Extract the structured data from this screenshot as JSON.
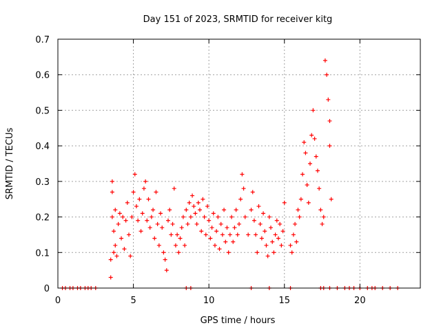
{
  "chart_data": {
    "type": "scatter",
    "title": "Day 151 of 2023, SRMTID for receiver kitg",
    "xlabel": "GPS time / hours",
    "ylabel": "SRMTID / TECUs",
    "xlim": [
      0,
      24
    ],
    "ylim": [
      0,
      0.7
    ],
    "xticks": [
      0,
      5,
      10,
      15,
      20
    ],
    "xtick_labels": [
      "0",
      "5",
      "10",
      "15",
      "20"
    ],
    "yticks": [
      0,
      0.1,
      0.2,
      0.3,
      0.4,
      0.5,
      0.6,
      0.7
    ],
    "ytick_labels": [
      "0",
      "0.1",
      "0.2",
      "0.3",
      "0.4",
      "0.5",
      "0.6",
      "0.7"
    ],
    "grid": true,
    "marker": "+",
    "color": "#ff0000",
    "series": [
      {
        "name": "SRMTID",
        "x": [
          0.3,
          0.5,
          0.8,
          1.0,
          1.3,
          1.5,
          1.8,
          2.0,
          2.2,
          2.5,
          3.5,
          3.5,
          3.6,
          3.6,
          3.6,
          3.7,
          3.7,
          3.8,
          3.8,
          3.9,
          4.0,
          4.1,
          4.2,
          4.3,
          4.4,
          4.5,
          4.6,
          4.7,
          4.8,
          4.9,
          5.0,
          5.1,
          5.2,
          5.3,
          5.4,
          5.5,
          5.6,
          5.7,
          5.8,
          5.9,
          6.0,
          6.1,
          6.2,
          6.3,
          6.4,
          6.5,
          6.6,
          6.7,
          6.8,
          6.9,
          7.0,
          7.1,
          7.2,
          7.3,
          7.4,
          7.5,
          7.6,
          7.7,
          7.8,
          7.9,
          8.0,
          8.1,
          8.2,
          8.3,
          8.4,
          8.5,
          8.6,
          8.7,
          8.8,
          8.9,
          9.0,
          9.1,
          9.2,
          9.3,
          9.4,
          9.5,
          9.6,
          9.7,
          9.8,
          9.9,
          10.0,
          10.1,
          10.2,
          10.3,
          10.4,
          10.5,
          10.6,
          10.7,
          10.8,
          10.9,
          11.0,
          11.1,
          11.2,
          11.3,
          11.4,
          11.5,
          11.6,
          11.7,
          11.8,
          11.9,
          12.0,
          12.1,
          12.2,
          12.3,
          12.4,
          12.6,
          12.8,
          12.9,
          13.0,
          13.1,
          13.2,
          13.3,
          13.4,
          13.5,
          13.6,
          13.7,
          13.8,
          13.9,
          14.0,
          14.1,
          14.2,
          14.3,
          14.4,
          14.5,
          14.6,
          14.7,
          14.8,
          14.9,
          15.0,
          15.4,
          15.5,
          15.6,
          15.7,
          15.8,
          15.9,
          16.0,
          16.1,
          16.2,
          16.3,
          16.4,
          16.5,
          16.6,
          16.7,
          16.8,
          16.9,
          17.0,
          17.1,
          17.2,
          17.3,
          17.4,
          17.5,
          17.6,
          17.7,
          17.8,
          17.9,
          18.0,
          18.0,
          18.1,
          8.5,
          8.8,
          12.8,
          14.0,
          15.4,
          17.4,
          17.6,
          18.0,
          18.5,
          19.0,
          19.3,
          19.6,
          20.0,
          20.5,
          20.8,
          21.0,
          21.5,
          22.0,
          22.5
        ],
        "y": [
          0,
          0,
          0,
          0,
          0,
          0,
          0,
          0,
          0,
          0,
          0.03,
          0.08,
          0.3,
          0.27,
          0.2,
          0.16,
          0.1,
          0.22,
          0.12,
          0.09,
          0.18,
          0.21,
          0.14,
          0.2,
          0.11,
          0.19,
          0.24,
          0.15,
          0.09,
          0.2,
          0.27,
          0.32,
          0.23,
          0.19,
          0.25,
          0.16,
          0.21,
          0.28,
          0.3,
          0.19,
          0.25,
          0.17,
          0.2,
          0.22,
          0.14,
          0.27,
          0.18,
          0.12,
          0.21,
          0.17,
          0.1,
          0.08,
          0.05,
          0.19,
          0.22,
          0.15,
          0.18,
          0.28,
          0.12,
          0.15,
          0.1,
          0.14,
          0.17,
          0.2,
          0.12,
          0.22,
          0.18,
          0.24,
          0.2,
          0.26,
          0.23,
          0.21,
          0.18,
          0.24,
          0.22,
          0.16,
          0.25,
          0.2,
          0.15,
          0.23,
          0.19,
          0.14,
          0.17,
          0.21,
          0.12,
          0.16,
          0.2,
          0.11,
          0.18,
          0.15,
          0.22,
          0.13,
          0.17,
          0.1,
          0.15,
          0.2,
          0.13,
          0.17,
          0.22,
          0.15,
          0.18,
          0.25,
          0.32,
          0.28,
          0.2,
          0.15,
          0.22,
          0.27,
          0.19,
          0.15,
          0.1,
          0.23,
          0.18,
          0.14,
          0.21,
          0.16,
          0.12,
          0.09,
          0.2,
          0.17,
          0.13,
          0.1,
          0.15,
          0.19,
          0.14,
          0.18,
          0.12,
          0.16,
          0.24,
          0.12,
          0.1,
          0.15,
          0.18,
          0.13,
          0.22,
          0.2,
          0.25,
          0.32,
          0.41,
          0.38,
          0.29,
          0.24,
          0.35,
          0.43,
          0.5,
          0.42,
          0.37,
          0.33,
          0.28,
          0.22,
          0.18,
          0.2,
          0.64,
          0.6,
          0.53,
          0.47,
          0.4,
          0.25,
          0,
          0,
          0,
          0,
          0,
          0,
          0,
          0,
          0,
          0,
          0,
          0,
          0,
          0,
          0,
          0,
          0,
          0,
          0
        ]
      }
    ]
  }
}
